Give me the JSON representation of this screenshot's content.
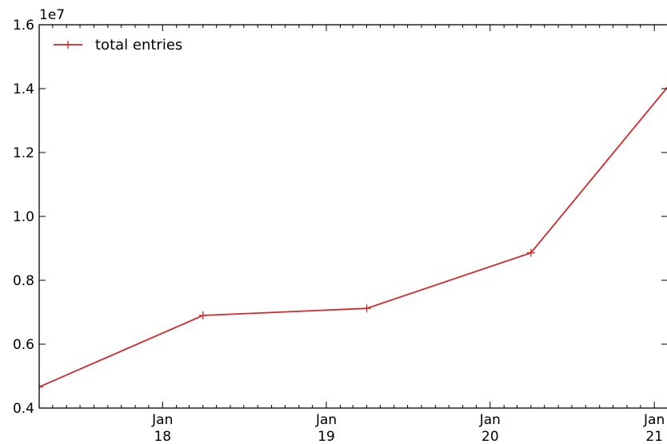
{
  "chart_data": {
    "type": "line",
    "y_offset_label": "1e7",
    "x_ticks": [
      {
        "month": "Jan",
        "year": "18",
        "date": "2018-01-01"
      },
      {
        "month": "Jan",
        "year": "19",
        "date": "2019-01-01"
      },
      {
        "month": "Jan",
        "year": "20",
        "date": "2020-01-01"
      },
      {
        "month": "Jan",
        "year": "21",
        "date": "2021-01-01"
      }
    ],
    "y_ticks": [
      "0.4",
      "0.6",
      "0.8",
      "1.0",
      "1.2",
      "1.4",
      "1.6"
    ],
    "y_tick_values": [
      0.4,
      0.6,
      0.8,
      1.0,
      1.2,
      1.4,
      1.6
    ],
    "ylim": [
      0.4,
      1.6
    ],
    "xlim": [
      "2017-04-01",
      "2021-01-31"
    ],
    "grid": false,
    "legend_position": "top-left",
    "series": [
      {
        "name": "total entries",
        "color": "#d62728",
        "marker": "plus",
        "x": [
          "2017-04-01",
          "2018-04-01",
          "2019-04-01",
          "2020-04-01",
          "2021-04-01"
        ],
        "y": [
          0.466,
          0.69,
          0.712,
          0.886,
          1.508
        ]
      }
    ]
  }
}
